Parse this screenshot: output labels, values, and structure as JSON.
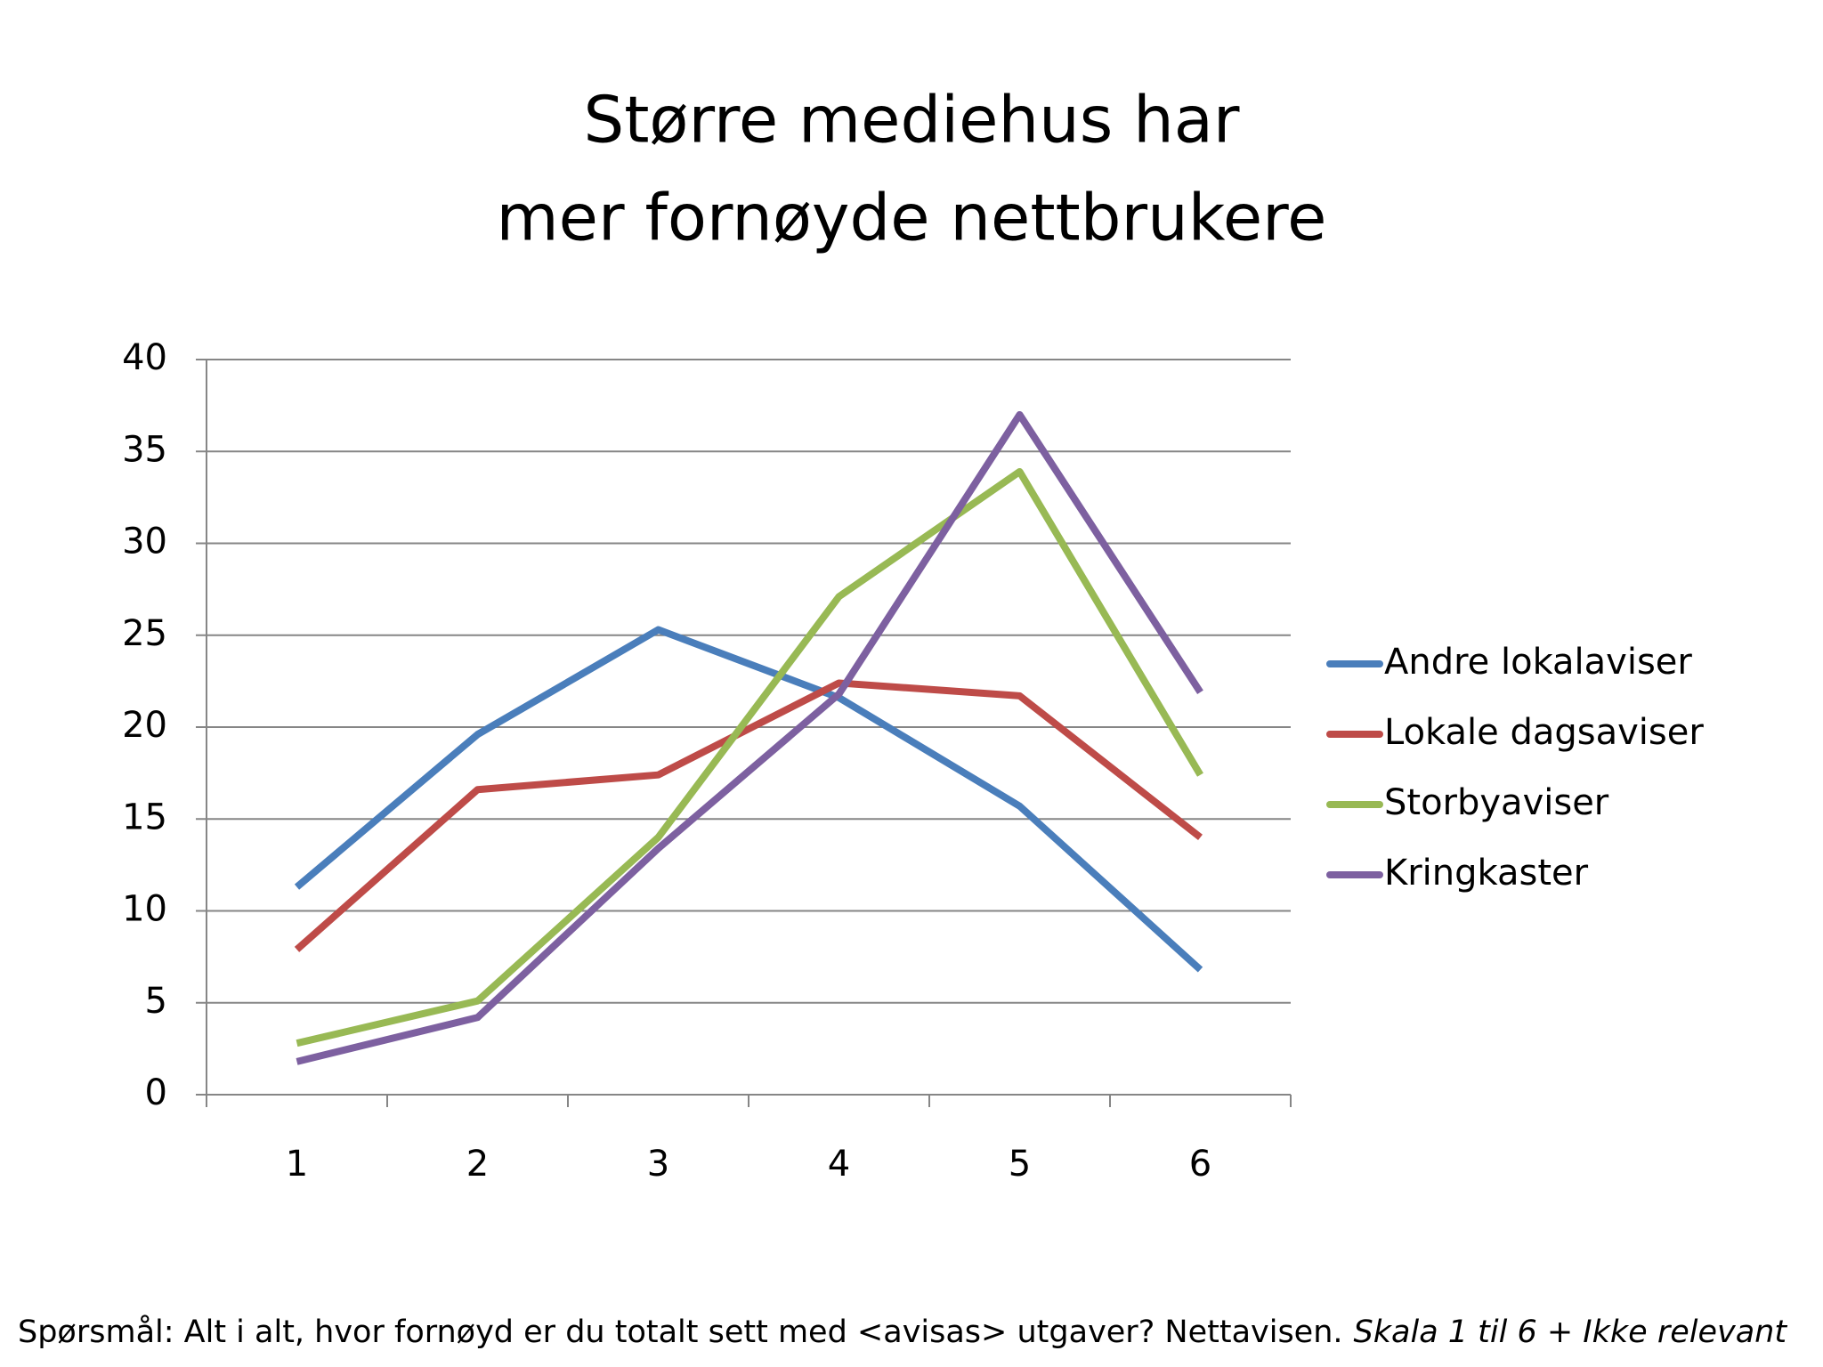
{
  "chart_data": {
    "type": "line",
    "title": [
      "Større mediehus har",
      "mer fornøyde nettbrukere"
    ],
    "categories": [
      "1",
      "2",
      "3",
      "4",
      "5",
      "6"
    ],
    "series": [
      {
        "name": "Andre lokalaviser",
        "color": "#4a7ebb",
        "values": [
          11.3,
          19.6,
          25.3,
          21.6,
          15.7,
          6.8
        ]
      },
      {
        "name": "Lokale dagsaviser",
        "color": "#be4b48",
        "values": [
          7.9,
          16.6,
          17.4,
          22.4,
          21.7,
          14.0
        ]
      },
      {
        "name": "Storbyaviser",
        "color": "#98b954",
        "values": [
          2.8,
          5.1,
          14.0,
          27.1,
          33.9,
          17.4
        ]
      },
      {
        "name": "Kringkaster",
        "color": "#7d60a0",
        "values": [
          1.8,
          4.2,
          13.4,
          21.8,
          37.0,
          21.9
        ]
      }
    ],
    "ylim": [
      0,
      40
    ],
    "yticks": [
      0,
      5,
      10,
      15,
      20,
      25,
      30,
      35,
      40
    ],
    "grid": true,
    "legend": "right",
    "footnote": {
      "text": "Spørsmål: Alt i alt, hvor fornøyd er du totalt sett med <avisas> utgaver? Nettavisen.",
      "emphasis": "Skala 1 til 6 + Ikke relevant"
    }
  }
}
